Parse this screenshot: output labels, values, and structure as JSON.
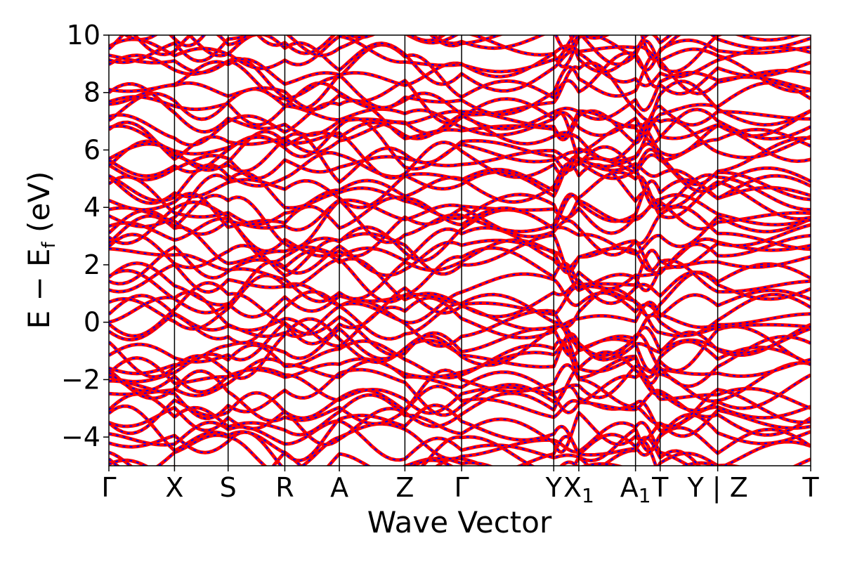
{
  "chart_data": {
    "type": "line",
    "title": "",
    "xlabel": "Wave Vector",
    "ylabel_main": "E − E",
    "ylabel_sub": "f",
    "ylabel_unit": " (eV)",
    "ylim": [
      -5,
      10
    ],
    "yticks": [
      -4,
      -2,
      0,
      2,
      4,
      6,
      8,
      10
    ],
    "ytick_labels": [
      "−4",
      "−2",
      "0",
      "2",
      "4",
      "6",
      "8",
      "10"
    ],
    "grid": false,
    "legend": "none",
    "path_ticks": [
      {
        "label": "Γ",
        "sub": "",
        "pos": 0.0
      },
      {
        "label": "X",
        "sub": "",
        "pos": 0.0935
      },
      {
        "label": "S",
        "sub": "",
        "pos": 0.1699
      },
      {
        "label": "R",
        "sub": "",
        "pos": 0.2507
      },
      {
        "label": "A",
        "sub": "",
        "pos": 0.3284
      },
      {
        "label": "Z",
        "sub": "",
        "pos": 0.4218
      },
      {
        "label": "Γ",
        "sub": "",
        "pos": 0.5026
      },
      {
        "label": "Y",
        "sub": "",
        "pos": 0.6339
      },
      {
        "label": "X",
        "sub": "1",
        "pos": 0.6696
      },
      {
        "label": "A",
        "sub": "1",
        "pos": 0.7504
      },
      {
        "label": "T",
        "sub": "",
        "pos": 0.7855
      },
      {
        "label": "Y | Z",
        "sub": "",
        "pos": 0.8675
      },
      {
        "label": "T",
        "sub": "",
        "pos": 1.0
      }
    ],
    "series": [
      {
        "color": "#ff0000",
        "style": "solid"
      },
      {
        "color": "#0000ff",
        "style": "dashed"
      }
    ],
    "band_count": 60
  }
}
